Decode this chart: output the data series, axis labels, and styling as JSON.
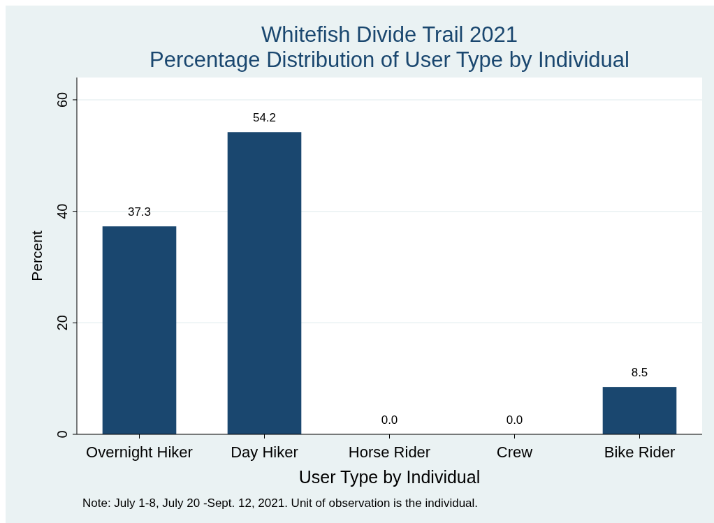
{
  "chart_data": {
    "type": "bar",
    "title": "Whitefish Divide Trail 2021",
    "subtitle": "Percentage Distribution of User Type by Individual",
    "xlabel": "User Type by Individual",
    "ylabel": "Percent",
    "categories": [
      "Overnight Hiker",
      "Day Hiker",
      "Horse Rider",
      "Crew",
      "Bike Rider"
    ],
    "values": [
      37.3,
      54.2,
      0,
      0,
      8.5
    ],
    "value_labels": [
      "37.3",
      "54.2",
      "0.0",
      "0.0",
      "8.5"
    ],
    "color": "#1a476f",
    "ylim": [
      0,
      64
    ],
    "yticks": [
      0,
      20,
      40,
      60
    ],
    "grid": "y",
    "annotations": [
      "Note: July 1-8, July 20 -Sept. 12, 2021. Unit of observation is the individual."
    ]
  }
}
